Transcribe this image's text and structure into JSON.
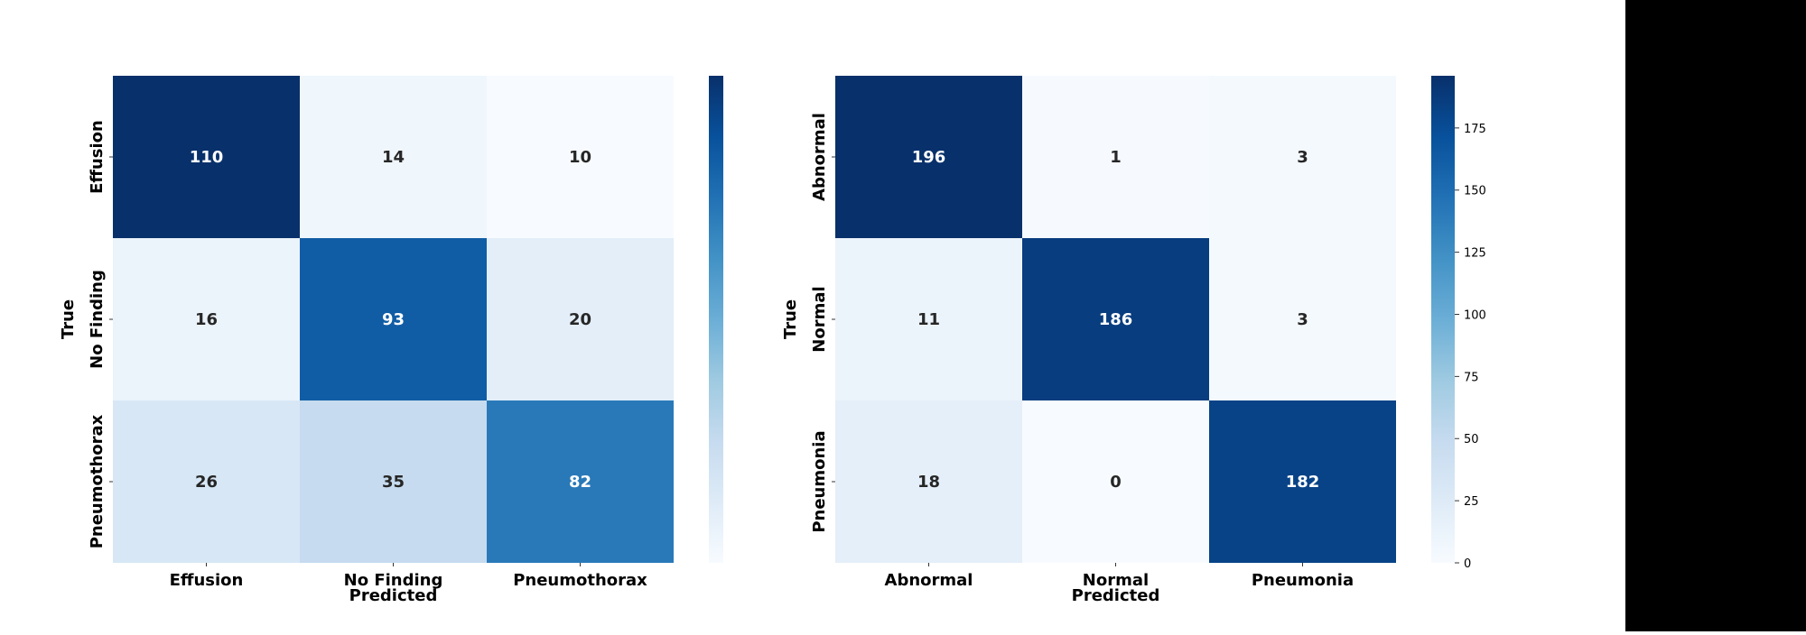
{
  "chart_data": [
    {
      "type": "heatmap",
      "name": "confusion-matrix-left",
      "rows": [
        "Effusion",
        "No Finding",
        "Pneumothorax"
      ],
      "cols": [
        "Effusion",
        "No Finding",
        "Pneumothorax"
      ],
      "values": [
        [
          110,
          14,
          10
        ],
        [
          16,
          93,
          20
        ],
        [
          26,
          35,
          82
        ]
      ],
      "xlabel": "Predicted",
      "ylabel": "True",
      "colormap": "Blues",
      "vmin": 10,
      "vmax": 110,
      "colorbar_ticks": []
    },
    {
      "type": "heatmap",
      "name": "confusion-matrix-right",
      "rows": [
        "Abnormal",
        "Normal",
        "Pneumonia"
      ],
      "cols": [
        "Abnormal",
        "Normal",
        "Pneumonia"
      ],
      "values": [
        [
          196,
          1,
          3
        ],
        [
          11,
          186,
          3
        ],
        [
          18,
          0,
          182
        ]
      ],
      "xlabel": "Predicted",
      "ylabel": "True",
      "colormap": "Blues",
      "vmin": 0,
      "vmax": 196,
      "colorbar_ticks": [
        0,
        25,
        50,
        75,
        100,
        125,
        150,
        175
      ]
    }
  ],
  "colors": {
    "cmap_low": "#f7fbff",
    "cmap_high": "#08306b",
    "background": "#ffffff",
    "right_pane": "#000000",
    "text_light": "#ffffff",
    "text_dark": "#262626"
  }
}
